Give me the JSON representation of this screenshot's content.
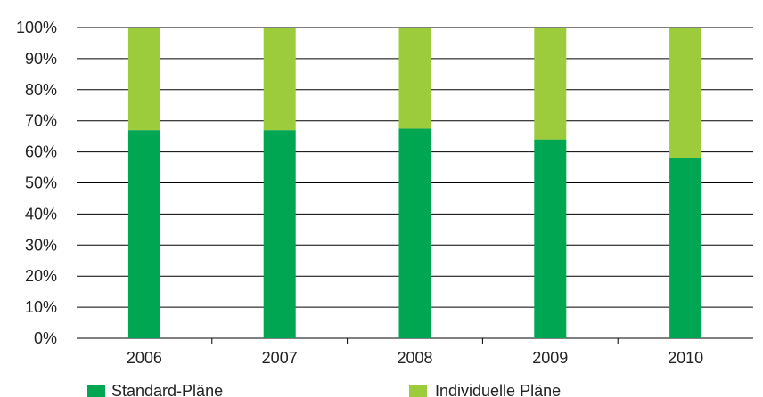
{
  "chart_data": {
    "type": "bar",
    "stacked": true,
    "categories": [
      "2006",
      "2007",
      "2008",
      "2009",
      "2010"
    ],
    "series": [
      {
        "name": "Standard-Pläne",
        "values": [
          67,
          67,
          67.5,
          64,
          58
        ]
      },
      {
        "name": "Individuelle Pläne",
        "values": [
          33,
          33,
          32.5,
          36,
          42
        ]
      }
    ],
    "y_ticks": [
      "0%",
      "10%",
      "20%",
      "30%",
      "40%",
      "50%",
      "60%",
      "70%",
      "80%",
      "90%",
      "100%"
    ],
    "ylim": [
      0,
      100
    ],
    "grid": true,
    "legend_position": "bottom",
    "colors": {
      "standard": "#00a651",
      "individuell": "#9ccb3b",
      "grid": "#000000",
      "text": "#222222"
    }
  }
}
